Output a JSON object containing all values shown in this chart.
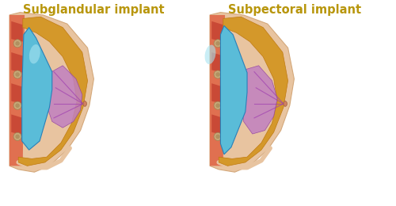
{
  "title_left": "Subglandular implant",
  "title_right": "Subpectoral implant",
  "title_color": "#B8960C",
  "title_fontsize": 10.5,
  "bg_color": "#FFFFFF",
  "fat_color": "#D4982A",
  "fat_edge": "#C07A10",
  "muscle_color_1": "#C0392B",
  "muscle_color_2": "#E07050",
  "implant_color": "#5ABCD8",
  "implant_dark": "#2980B9",
  "implant_highlight": "#A8E4F0",
  "gland_color": "#C080C0",
  "gland_edge": "#9040A0",
  "skin_outer": "#E8C4A0",
  "skin_edge": "#D4A87A",
  "node_color": "#C8A878",
  "node_edge": "#A08050",
  "bottom_skin": "#E8C090"
}
